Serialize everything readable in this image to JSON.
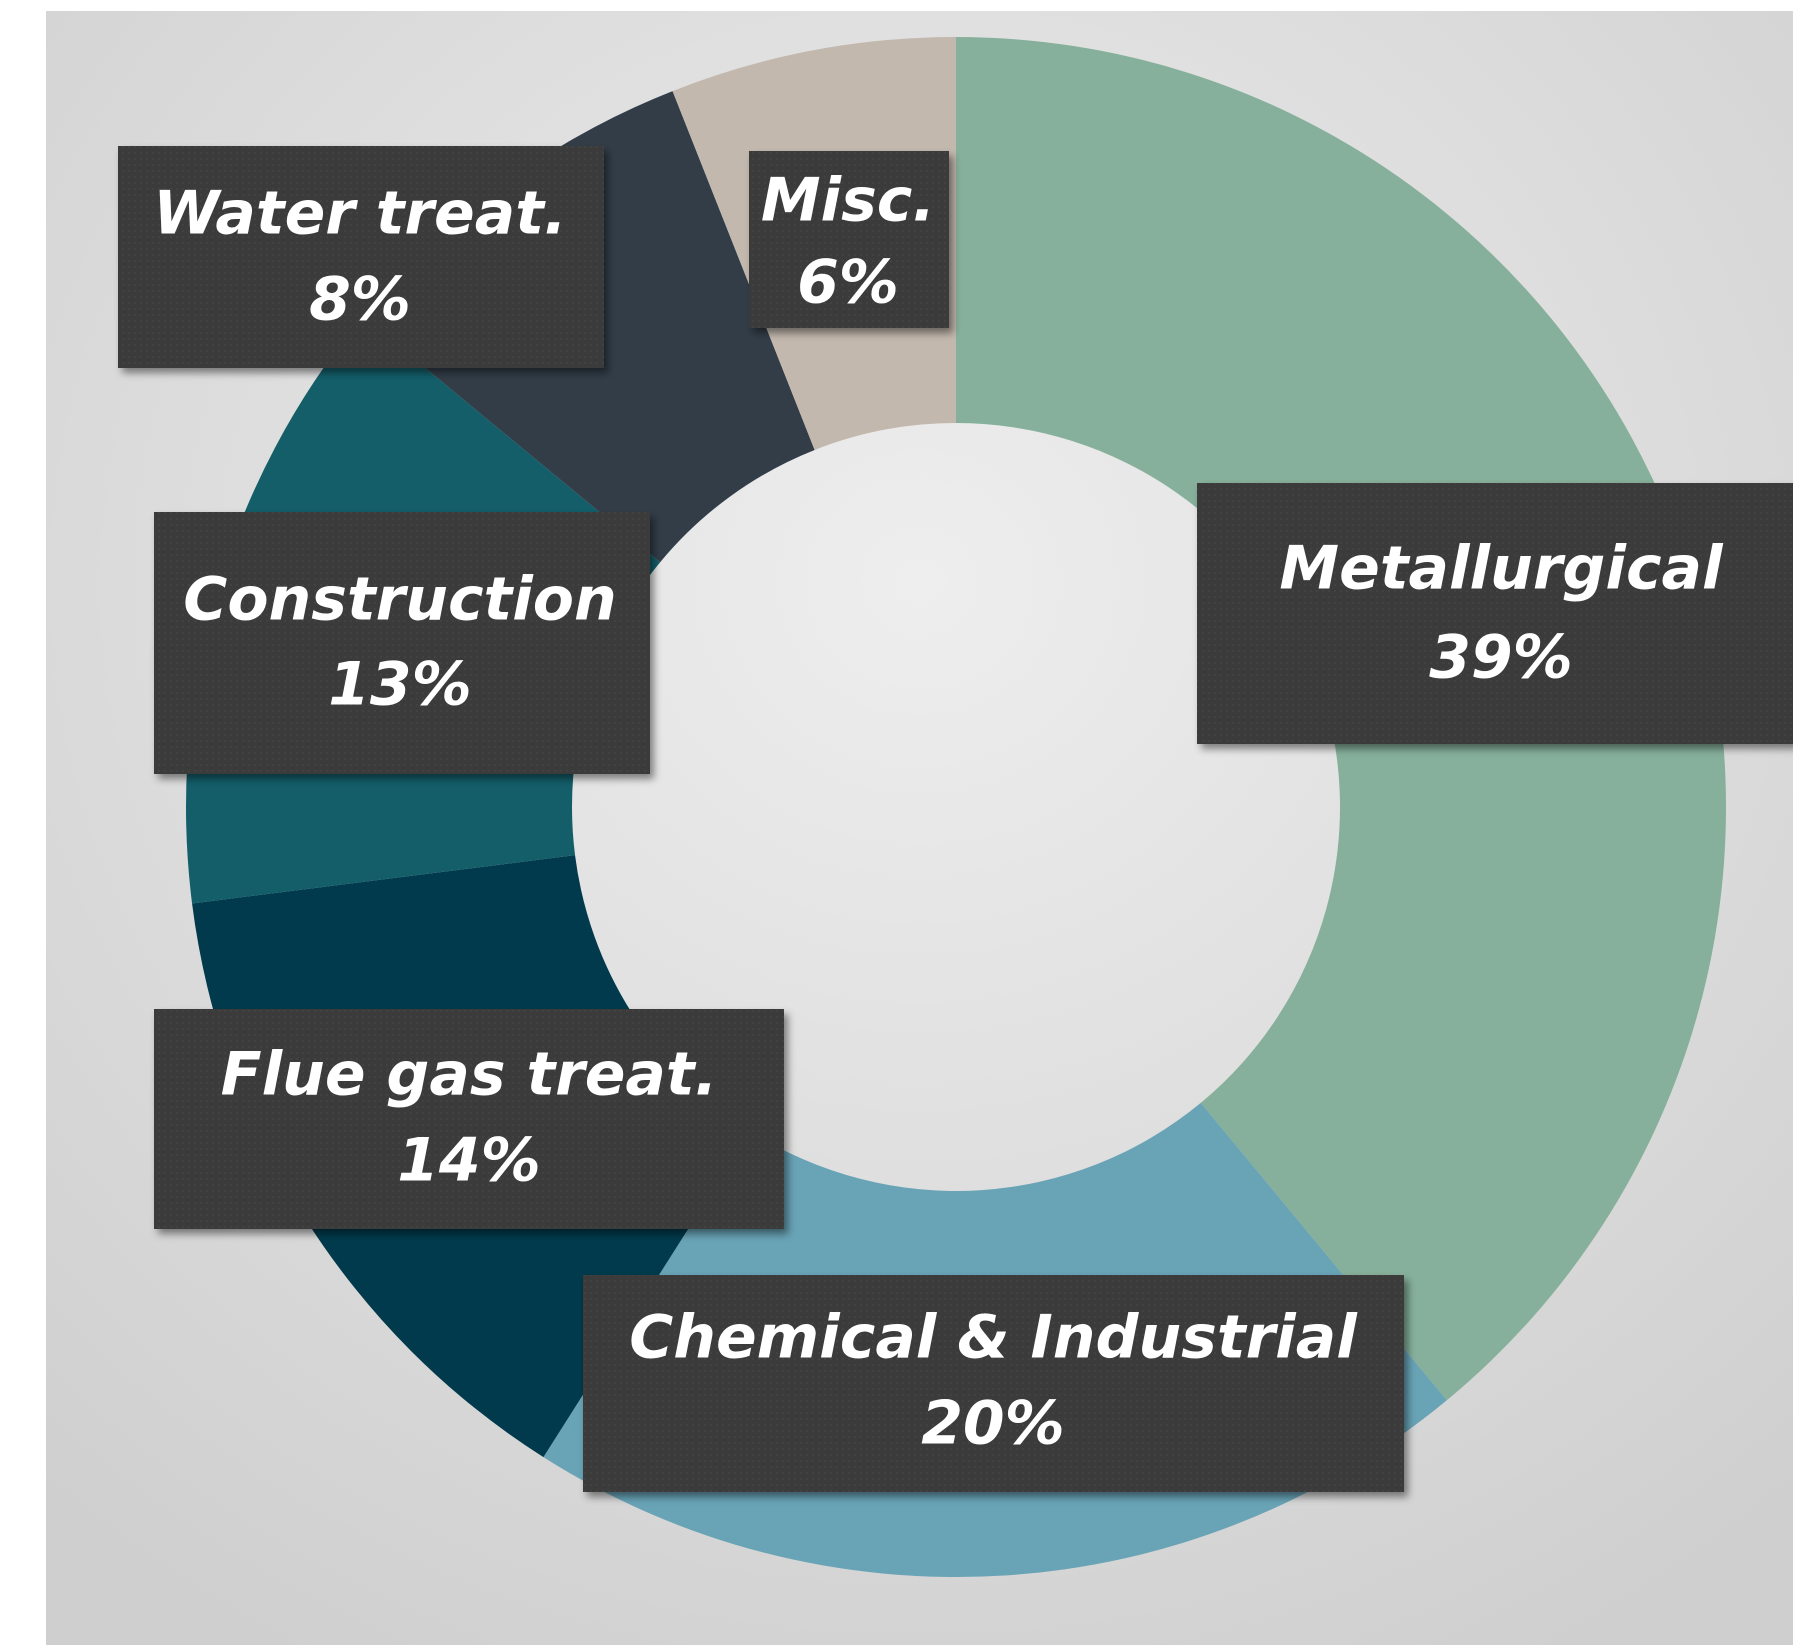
{
  "chart_data": {
    "type": "donut",
    "categories": [
      "Metallurgical",
      "Chemical & Industrial",
      "Flue gas treat.",
      "Construction",
      "Water treat.",
      "Misc."
    ],
    "values": [
      39,
      20,
      14,
      13,
      8,
      6
    ],
    "value_labels": [
      "39%",
      "20%",
      "14%",
      "13%",
      "8%",
      "6%"
    ],
    "colors": [
      "#86b09b",
      "#68a3b6",
      "#003a4c",
      "#135e69",
      "#323d48",
      "#c2b8ae"
    ]
  }
}
